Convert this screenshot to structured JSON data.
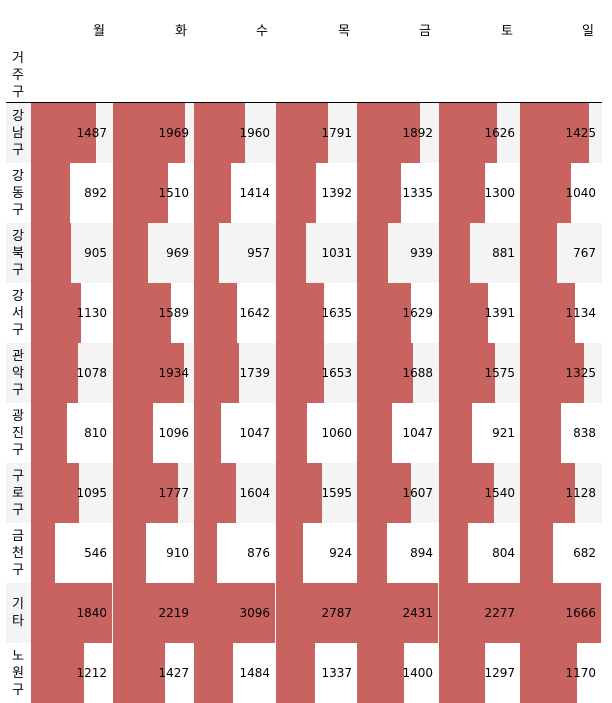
{
  "table": {
    "index_name": "거주구",
    "columns": [
      "월",
      "화",
      "수",
      "목",
      "금",
      "토",
      "일"
    ]
  },
  "colors": {
    "bar": "#c86360",
    "stripe": "#f4f4f4",
    "background": "#ffffff"
  },
  "chart_data": {
    "type": "table",
    "index_name": "거주구",
    "columns": [
      "월",
      "화",
      "수",
      "목",
      "금",
      "토",
      "일"
    ],
    "rows": [
      {
        "label": "강남구",
        "values": [
          1487,
          1969,
          1960,
          1791,
          1892,
          1626,
          1425
        ]
      },
      {
        "label": "강동구",
        "values": [
          892,
          1510,
          1414,
          1392,
          1335,
          1300,
          1040
        ]
      },
      {
        "label": "강북구",
        "values": [
          905,
          969,
          957,
          1031,
          939,
          881,
          767
        ]
      },
      {
        "label": "강서구",
        "values": [
          1130,
          1589,
          1642,
          1635,
          1629,
          1391,
          1134
        ]
      },
      {
        "label": "관악구",
        "values": [
          1078,
          1934,
          1739,
          1653,
          1688,
          1575,
          1325
        ]
      },
      {
        "label": "광진구",
        "values": [
          810,
          1096,
          1047,
          1060,
          1047,
          921,
          838
        ]
      },
      {
        "label": "구로구",
        "values": [
          1095,
          1777,
          1604,
          1595,
          1607,
          1540,
          1128
        ]
      },
      {
        "label": "금천구",
        "values": [
          546,
          910,
          876,
          924,
          894,
          804,
          682
        ]
      },
      {
        "label": "기타",
        "values": [
          1840,
          2219,
          3096,
          2787,
          2431,
          2277,
          1666
        ]
      },
      {
        "label": "노원구",
        "values": [
          1212,
          1427,
          1484,
          1337,
          1400,
          1297,
          1170
        ]
      }
    ],
    "bar_scale": "per-column"
  }
}
